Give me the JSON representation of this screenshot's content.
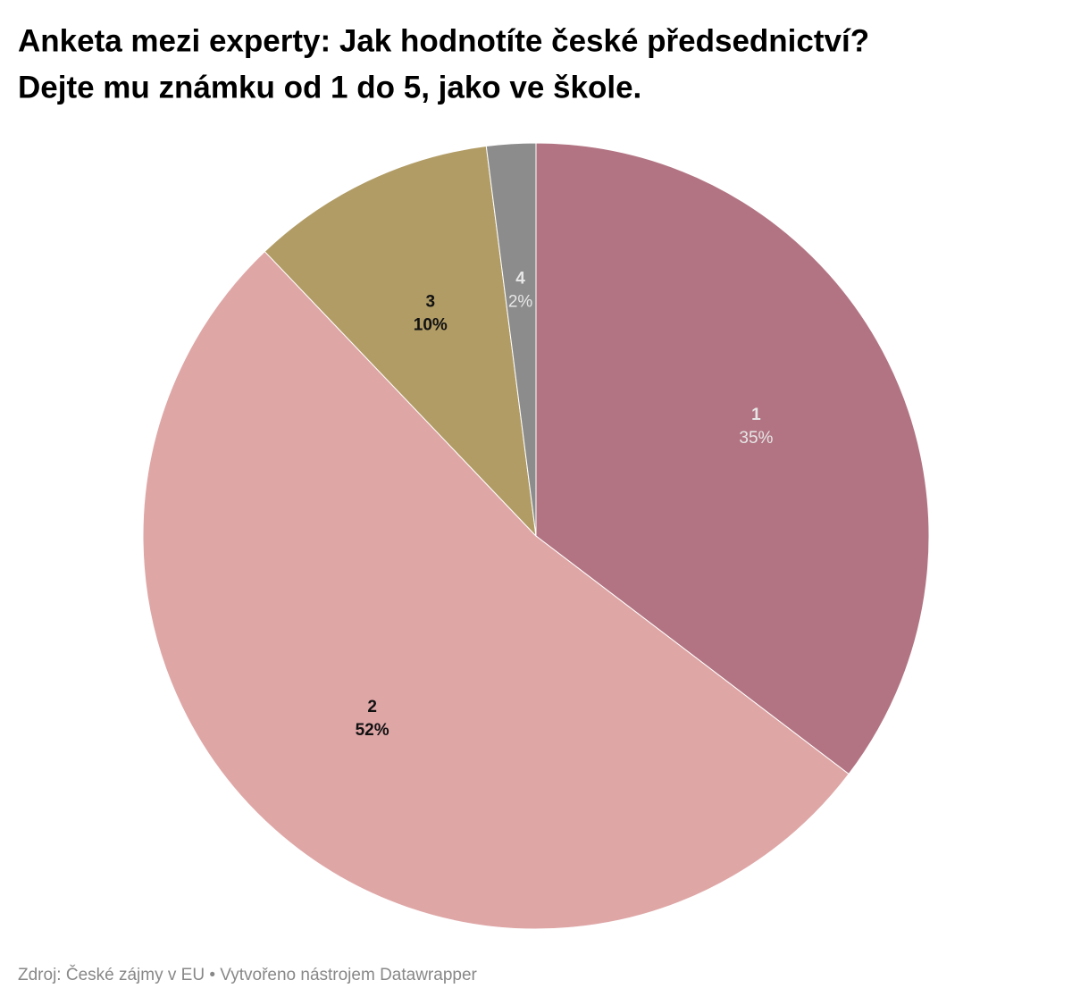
{
  "chart_data": {
    "type": "pie",
    "title": [
      "Anketa mezi experty: Jak hodnotíte české předsednictví?",
      "Dejte mu známku od 1 do 5, jako ve škole."
    ],
    "categories": [
      "1",
      "2",
      "3",
      "4"
    ],
    "values": [
      35,
      52,
      10,
      2
    ],
    "value_labels": [
      "35%",
      "52%",
      "10%",
      "2%"
    ],
    "colors": [
      "#b27483",
      "#dfa6a6",
      "#b19c65",
      "#8c8c8c"
    ],
    "source": "Zdroj: České zájmy v EU • Vytvořeno nástrojem Datawrapper"
  }
}
